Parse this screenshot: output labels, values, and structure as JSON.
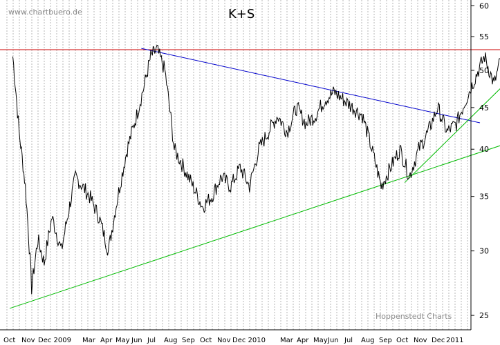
{
  "header": {
    "watermark": "www.chartbuero.de",
    "title": "K+S",
    "credit": "Hoppenstedt Charts"
  },
  "chart_data": {
    "type": "line",
    "title": "K+S",
    "y_scale": "log",
    "ylim": [
      24,
      61
    ],
    "y_ticks": [
      25,
      30,
      35,
      40,
      45,
      50,
      55,
      60
    ],
    "x_labels": [
      "Oct",
      "Nov",
      "Dec 2009",
      "Mar",
      "Apr",
      "May",
      "Jun",
      "Jul",
      "Aug",
      "Sep",
      "Oct",
      "Nov",
      "Dec 2010",
      "Mar",
      "Apr",
      "May",
      "Jun",
      "Jul",
      "Aug",
      "Sep",
      "Oct",
      "Nov",
      "Dec",
      "2011"
    ],
    "grid": "vertical dotted",
    "series": [
      {
        "color": "#000000",
        "x": [
          "2008-10",
          "2008-10",
          "2008-10",
          "2008-11",
          "2008-11",
          "2008-11",
          "2008-12",
          "2008-12",
          "2009-01",
          "2009-02",
          "2009-02",
          "2009-03",
          "2009-03",
          "2009-04",
          "2009-04",
          "2009-05",
          "2009-05",
          "2009-05",
          "2009-06",
          "2009-06",
          "2009-07",
          "2009-07",
          "2009-08",
          "2009-08",
          "2009-09",
          "2009-09",
          "2009-10",
          "2009-10",
          "2009-11",
          "2009-11",
          "2009-12",
          "2009-12",
          "2010-01",
          "2010-01",
          "2010-02",
          "2010-02",
          "2010-03",
          "2010-03",
          "2010-04",
          "2010-04",
          "2010-05",
          "2010-05",
          "2010-06",
          "2010-06",
          "2010-07",
          "2010-07",
          "2010-08",
          "2010-08",
          "2010-09",
          "2010-09",
          "2010-10",
          "2010-10",
          "2010-11",
          "2010-11",
          "2010-12",
          "2010-12",
          "2011-01",
          "2011-01",
          "2011-01"
        ],
        "values": [
          52,
          42,
          36,
          27,
          31,
          29,
          33,
          30,
          37,
          35,
          33,
          30,
          35,
          40,
          44,
          48,
          52,
          53,
          50,
          40,
          38,
          36,
          34,
          35,
          37,
          36,
          38,
          36,
          40,
          42,
          44,
          42,
          45,
          43,
          44,
          46,
          47,
          46,
          45,
          44,
          40,
          36,
          38,
          40,
          37,
          40,
          42,
          45,
          42,
          43,
          46,
          49,
          52,
          48,
          53,
          55,
          57,
          56,
          52
        ]
      }
    ],
    "trendlines": [
      {
        "color": "#cc0000",
        "from": [
          "2008-09",
          53
        ],
        "to": [
          "2011-02",
          53
        ]
      },
      {
        "color": "#0000cc",
        "from": [
          "2009-05",
          53.2
        ],
        "to": [
          "2010-11",
          43.1
        ]
      },
      {
        "color": "#00bb00",
        "from": [
          "2008-10",
          25.5
        ],
        "to": [
          "2011-02",
          41.8
        ]
      },
      {
        "color": "#00bb00",
        "from": [
          "2010-07",
          36.4
        ],
        "to": [
          "2011-02",
          52.5
        ]
      }
    ]
  }
}
